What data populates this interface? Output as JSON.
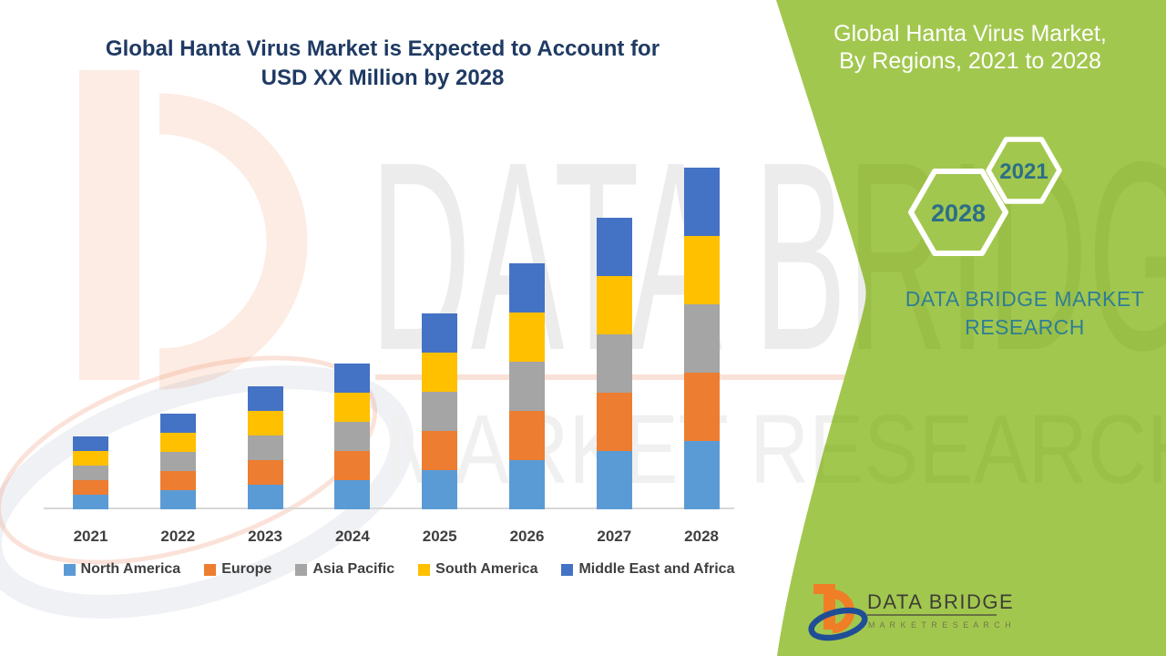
{
  "page": {
    "title_line1": "Global Hanta Virus Market is Expected to Account for",
    "title_line2": "USD XX Million by 2028"
  },
  "side_panel": {
    "title_line1": "Global Hanta Virus Market,",
    "title_line2": "By Regions, 2021 to 2028",
    "hexagon_back_label": "2028",
    "hexagon_front_label": "2021",
    "brand_text_line1": "DATA BRIDGE MARKET",
    "brand_text_line2": "RESEARCH",
    "colors": {
      "panel_green": "#A2C74F",
      "panel_text_teal": "#2E7E95",
      "hexagon_year_text": "#2C6E87",
      "title_navy": "#1F3A63"
    }
  },
  "logo": {
    "name_line": "DATA BRIDGE",
    "tagline": "M A R K E T     R E S E A R C H"
  },
  "watermark": {
    "line1": "DATA BRIDGE",
    "line2": "MARKET RESEARCH"
  },
  "chart_data": {
    "type": "bar",
    "stacked": true,
    "title": "Global Hanta Virus Market is Expected to Account for USD XX Million by 2028",
    "categories": [
      "2021",
      "2022",
      "2023",
      "2024",
      "2025",
      "2026",
      "2027",
      "2028"
    ],
    "series": [
      {
        "name": "North America",
        "color": "#5B9BD5",
        "values": [
          16,
          21,
          27,
          32,
          43,
          54,
          64,
          75
        ]
      },
      {
        "name": "Europe",
        "color": "#ED7D31",
        "values": [
          16,
          21,
          27,
          32,
          43,
          54,
          64,
          75
        ]
      },
      {
        "name": "Asia Pacific",
        "color": "#A5A5A5",
        "values": [
          16,
          21,
          27,
          32,
          43,
          54,
          64,
          75
        ]
      },
      {
        "name": "South America",
        "color": "#FFC000",
        "values": [
          16,
          21,
          27,
          32,
          43,
          54,
          64,
          75
        ]
      },
      {
        "name": "Middle East and Africa",
        "color": "#4472C4",
        "values": [
          16,
          21,
          27,
          32,
          43,
          54,
          64,
          75
        ]
      }
    ],
    "xlabel": "",
    "ylabel": "",
    "value_axis_visible": false,
    "grid": false,
    "legend_position": "bottom"
  }
}
